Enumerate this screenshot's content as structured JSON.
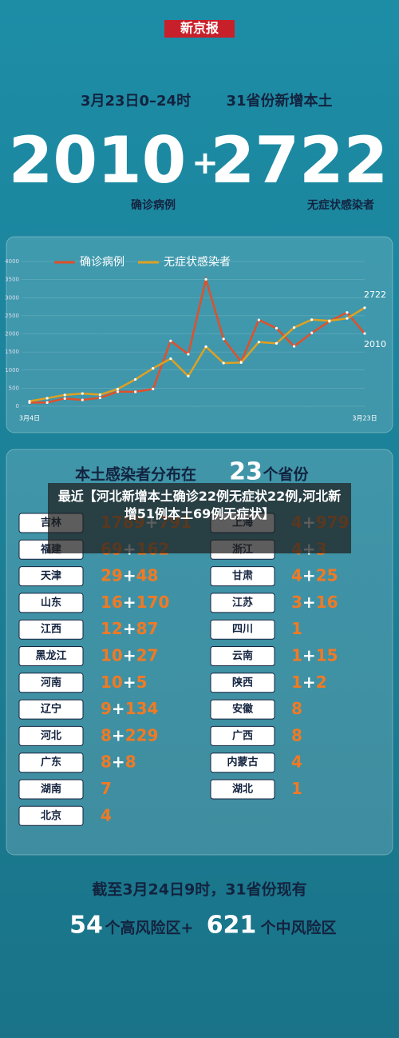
{
  "logo": "新京报",
  "header": {
    "date": "3月23日0–24时",
    "subtitle": "31省份新增本土",
    "confirmed": "2010",
    "plus": "+",
    "asymptomatic": "2722",
    "confirmed_label": "确诊病例",
    "asymptomatic_label": "无症状感染者"
  },
  "chart_data": {
    "type": "line",
    "categories": [
      "3月4日",
      null,
      null,
      null,
      null,
      null,
      null,
      null,
      null,
      null,
      null,
      null,
      null,
      null,
      null,
      null,
      null,
      null,
      null,
      "3月23日"
    ],
    "series": [
      {
        "name": "确诊病例",
        "color": "#e0502a",
        "values": [
          102,
          102,
          214,
          175,
          233,
          402,
          397,
          476,
          1807,
          1437,
          3507,
          1860,
          1226,
          2388,
          2157,
          1656,
          2027,
          2345,
          2591,
          2010
        ]
      },
      {
        "name": "无症状感染者",
        "color": "#e0a020",
        "values": [
          139,
          222,
          312,
          351,
          320,
          476,
          741,
          1048,
          1315,
          831,
          1647,
          1193,
          1206,
          1774,
          1737,
          2175,
          2393,
          2362,
          2427,
          2722
        ]
      }
    ],
    "ylim": [
      0,
      4000
    ],
    "yticks": [
      0,
      500,
      1000,
      1500,
      2000,
      2500,
      3000,
      3500,
      4000
    ],
    "grid": true,
    "legend": "top"
  },
  "provinces": {
    "title_before": "本土感染者分布在",
    "count": "23",
    "title_after": "个省份",
    "plus": "+",
    "left": [
      {
        "name": "吉林",
        "confirmed": "1789",
        "asymptomatic": "791"
      },
      {
        "name": "福建",
        "confirmed": "69",
        "asymptomatic": "162"
      },
      {
        "name": "天津",
        "confirmed": "29",
        "asymptomatic": "48"
      },
      {
        "name": "山东",
        "confirmed": "16",
        "asymptomatic": "170"
      },
      {
        "name": "江西",
        "confirmed": "12",
        "asymptomatic": "87"
      },
      {
        "name": "黑龙江",
        "confirmed": "10",
        "asymptomatic": "27"
      },
      {
        "name": "河南",
        "confirmed": "10",
        "asymptomatic": "5"
      },
      {
        "name": "辽宁",
        "confirmed": "9",
        "asymptomatic": "134"
      },
      {
        "name": "河北",
        "confirmed": "8",
        "asymptomatic": "229"
      },
      {
        "name": "广东",
        "confirmed": "8",
        "asymptomatic": "8"
      },
      {
        "name": "湖南",
        "confirmed": "7"
      },
      {
        "name": "北京",
        "confirmed": "4"
      }
    ],
    "right": [
      {
        "name": "上海",
        "confirmed": "4",
        "asymptomatic": "979"
      },
      {
        "name": "浙江",
        "confirmed": "4",
        "asymptomatic": "3"
      },
      {
        "name": "甘肃",
        "confirmed": "4",
        "asymptomatic": "25"
      },
      {
        "name": "江苏",
        "confirmed": "3",
        "asymptomatic": "16"
      },
      {
        "name": "四川",
        "confirmed": "1"
      },
      {
        "name": "云南",
        "confirmed": "1",
        "asymptomatic": "15"
      },
      {
        "name": "陕西",
        "confirmed": "1",
        "asymptomatic": "2"
      },
      {
        "name": "安徽",
        "confirmed": "8"
      },
      {
        "name": "广西",
        "confirmed": "8"
      },
      {
        "name": "内蒙古",
        "confirmed": "4"
      },
      {
        "name": "湖北",
        "confirmed": "1"
      }
    ]
  },
  "overlay": "最近【河北新增本土确诊22例无症状22例,河北新增51例本土69例无症状】",
  "footer": {
    "line1": "截至3月24日9时，31省份现有",
    "high": "54",
    "high_label": "个高风险区+",
    "mid": "621",
    "mid_label": "个中风险区"
  }
}
